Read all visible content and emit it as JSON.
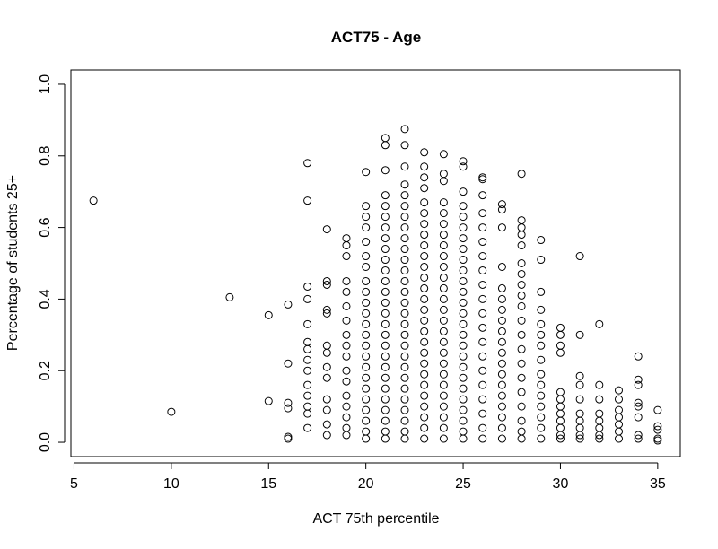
{
  "chart_data": {
    "type": "scatter",
    "title": "ACT75 - Age",
    "xlabel": "ACT 75th percentile",
    "ylabel": "Percentage of students 25+",
    "color": "#000000",
    "xlim": [
      4.84,
      36.16
    ],
    "ylim": [
      -0.04,
      1.04
    ],
    "xticks": [
      5,
      10,
      15,
      20,
      25,
      30,
      35
    ],
    "yticks": [
      {
        "value": 0,
        "label": "0.0"
      },
      0.2,
      0.4,
      0.6,
      0.8,
      {
        "value": 1,
        "label": "1.0"
      }
    ],
    "x": [
      6,
      10,
      13,
      15,
      15,
      16,
      16,
      16,
      16,
      16,
      16,
      17,
      17,
      17,
      17,
      17,
      17,
      17,
      17,
      17,
      17,
      17,
      17,
      17,
      17,
      18,
      18,
      18,
      18,
      18,
      18,
      18,
      18,
      18,
      18,
      18,
      18,
      18,
      19,
      19,
      19,
      19,
      19,
      19,
      19,
      19,
      19,
      19,
      19,
      19,
      19,
      19,
      19,
      19,
      19,
      20,
      20,
      20,
      20,
      20,
      20,
      20,
      20,
      20,
      20,
      20,
      20,
      20,
      20,
      20,
      20,
      20,
      20,
      20,
      20,
      20,
      20,
      20,
      21,
      21,
      21,
      21,
      21,
      21,
      21,
      21,
      21,
      21,
      21,
      21,
      21,
      21,
      21,
      21,
      21,
      21,
      21,
      21,
      21,
      21,
      21,
      21,
      21,
      21,
      21,
      22,
      22,
      22,
      22,
      22,
      22,
      22,
      22,
      22,
      22,
      22,
      22,
      22,
      22,
      22,
      22,
      22,
      22,
      22,
      22,
      22,
      22,
      22,
      22,
      22,
      22,
      22,
      22,
      23,
      23,
      23,
      23,
      23,
      23,
      23,
      23,
      23,
      23,
      23,
      23,
      23,
      23,
      23,
      23,
      23,
      23,
      23,
      23,
      23,
      23,
      23,
      23,
      23,
      23,
      23,
      24,
      24,
      24,
      24,
      24,
      24,
      24,
      24,
      24,
      24,
      24,
      24,
      24,
      24,
      24,
      24,
      24,
      24,
      24,
      24,
      24,
      24,
      24,
      24,
      24,
      24,
      25,
      25,
      25,
      25,
      25,
      25,
      25,
      25,
      25,
      25,
      25,
      25,
      25,
      25,
      25,
      25,
      25,
      25,
      25,
      25,
      25,
      25,
      25,
      25,
      25,
      25,
      26,
      26,
      26,
      26,
      26,
      26,
      26,
      26,
      26,
      26,
      26,
      26,
      26,
      26,
      26,
      26,
      26,
      26,
      26,
      26,
      27,
      27,
      27,
      27,
      27,
      27,
      27,
      27,
      27,
      27,
      27,
      27,
      27,
      27,
      27,
      27,
      27,
      27,
      27,
      28,
      28,
      28,
      28,
      28,
      28,
      28,
      28,
      28,
      28,
      28,
      28,
      28,
      28,
      28,
      28,
      28,
      28,
      28,
      28,
      29,
      29,
      29,
      29,
      29,
      29,
      29,
      29,
      29,
      29,
      29,
      29,
      29,
      29,
      29,
      30,
      30,
      30,
      30,
      30,
      30,
      30,
      30,
      30,
      30,
      30,
      30,
      31,
      31,
      31,
      31,
      31,
      31,
      31,
      31,
      31,
      31,
      32,
      32,
      32,
      32,
      32,
      32,
      32,
      32,
      33,
      33,
      33,
      33,
      33,
      33,
      33,
      34,
      34,
      34,
      34,
      34,
      34,
      34,
      34,
      35,
      35,
      35,
      35,
      35
    ],
    "values": [
      0.675,
      0.085,
      0.405,
      0.355,
      0.115,
      0.385,
      0.22,
      0.11,
      0.095,
      0.01,
      0.015,
      0.78,
      0.675,
      0.435,
      0.4,
      0.33,
      0.28,
      0.26,
      0.23,
      0.2,
      0.16,
      0.13,
      0.1,
      0.08,
      0.04,
      0.595,
      0.45,
      0.44,
      0.37,
      0.36,
      0.27,
      0.25,
      0.21,
      0.18,
      0.12,
      0.09,
      0.05,
      0.02,
      0.57,
      0.55,
      0.52,
      0.45,
      0.42,
      0.38,
      0.34,
      0.3,
      0.27,
      0.24,
      0.2,
      0.17,
      0.13,
      0.1,
      0.07,
      0.04,
      0.02,
      0.755,
      0.66,
      0.63,
      0.6,
      0.56,
      0.52,
      0.49,
      0.45,
      0.42,
      0.39,
      0.36,
      0.33,
      0.3,
      0.27,
      0.24,
      0.21,
      0.18,
      0.15,
      0.12,
      0.09,
      0.06,
      0.03,
      0.01,
      0.85,
      0.83,
      0.76,
      0.69,
      0.66,
      0.63,
      0.6,
      0.57,
      0.54,
      0.51,
      0.48,
      0.45,
      0.42,
      0.39,
      0.36,
      0.33,
      0.3,
      0.27,
      0.24,
      0.21,
      0.18,
      0.15,
      0.12,
      0.09,
      0.06,
      0.03,
      0.01,
      0.875,
      0.83,
      0.77,
      0.72,
      0.69,
      0.66,
      0.63,
      0.6,
      0.57,
      0.54,
      0.51,
      0.48,
      0.45,
      0.42,
      0.39,
      0.36,
      0.33,
      0.3,
      0.27,
      0.24,
      0.21,
      0.18,
      0.15,
      0.12,
      0.09,
      0.06,
      0.03,
      0.01,
      0.81,
      0.77,
      0.74,
      0.71,
      0.67,
      0.64,
      0.61,
      0.58,
      0.55,
      0.52,
      0.49,
      0.46,
      0.43,
      0.4,
      0.37,
      0.34,
      0.31,
      0.28,
      0.25,
      0.22,
      0.19,
      0.16,
      0.13,
      0.1,
      0.07,
      0.04,
      0.01,
      0.805,
      0.75,
      0.73,
      0.67,
      0.64,
      0.61,
      0.58,
      0.55,
      0.52,
      0.49,
      0.46,
      0.43,
      0.4,
      0.37,
      0.34,
      0.31,
      0.28,
      0.25,
      0.22,
      0.19,
      0.16,
      0.13,
      0.1,
      0.07,
      0.04,
      0.01,
      0.785,
      0.77,
      0.7,
      0.66,
      0.63,
      0.6,
      0.57,
      0.54,
      0.51,
      0.48,
      0.45,
      0.42,
      0.39,
      0.36,
      0.33,
      0.3,
      0.27,
      0.24,
      0.21,
      0.18,
      0.15,
      0.12,
      0.09,
      0.06,
      0.03,
      0.01,
      0.74,
      0.735,
      0.69,
      0.64,
      0.6,
      0.56,
      0.52,
      0.48,
      0.44,
      0.4,
      0.36,
      0.32,
      0.28,
      0.24,
      0.2,
      0.16,
      0.12,
      0.08,
      0.04,
      0.01,
      0.665,
      0.65,
      0.6,
      0.49,
      0.43,
      0.4,
      0.37,
      0.34,
      0.31,
      0.28,
      0.25,
      0.22,
      0.19,
      0.16,
      0.13,
      0.1,
      0.07,
      0.04,
      0.01,
      0.75,
      0.62,
      0.6,
      0.58,
      0.55,
      0.5,
      0.47,
      0.44,
      0.41,
      0.38,
      0.34,
      0.3,
      0.26,
      0.22,
      0.18,
      0.14,
      0.1,
      0.06,
      0.03,
      0.01,
      0.565,
      0.51,
      0.42,
      0.37,
      0.33,
      0.3,
      0.27,
      0.23,
      0.19,
      0.16,
      0.13,
      0.1,
      0.07,
      0.04,
      0.01,
      0.32,
      0.3,
      0.27,
      0.25,
      0.14,
      0.12,
      0.1,
      0.08,
      0.06,
      0.04,
      0.02,
      0.01,
      0.52,
      0.3,
      0.185,
      0.16,
      0.12,
      0.08,
      0.06,
      0.04,
      0.02,
      0.01,
      0.33,
      0.16,
      0.12,
      0.08,
      0.06,
      0.04,
      0.02,
      0.01,
      0.145,
      0.12,
      0.09,
      0.07,
      0.05,
      0.03,
      0.01,
      0.24,
      0.175,
      0.16,
      0.11,
      0.1,
      0.07,
      0.02,
      0.01,
      0.09,
      0.045,
      0.035,
      0.01,
      0.005
    ]
  }
}
